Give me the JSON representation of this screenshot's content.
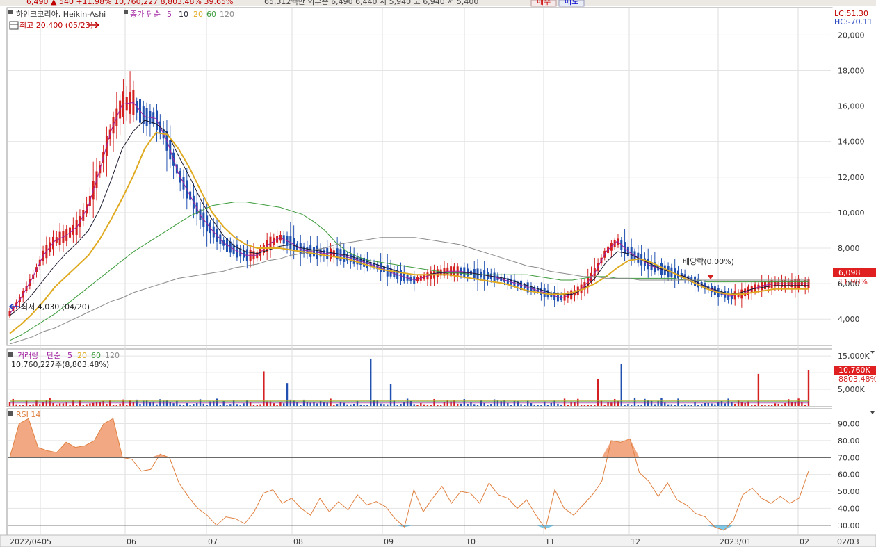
{
  "toolbar": {
    "quote_fragment": "6,490 ▲ 540 +11.98% 10,760,227 8,803.48% 39.65%",
    "volume_fragment": "65,312백만 외부순 6,490 6,440 시 5,940 고 6,940 저 5,400",
    "buy_label": "매수",
    "sell_label": "매도"
  },
  "price_panel": {
    "stock_name": "하인크코리아, Heikin-Ashi",
    "ma_title": "종가 단순",
    "ma_periods": [
      "5",
      "10",
      "20",
      "60",
      "120"
    ],
    "high_annotation": "최고 20,400 (05/23)",
    "low_annotation": "최저 4,030 (04/20)",
    "dividend_annotation": "배당락(0.00%)",
    "lc_label": "LC:51.30",
    "hc_label": "HC:-70.11",
    "price_tag": "6,098",
    "pct_tag": "11.98%"
  },
  "volume_panel": {
    "title": "거래량",
    "ma_title": "단순",
    "ma_periods": [
      "5",
      "20",
      "60",
      "120"
    ],
    "volume_text": "10,760,227주(8,803.48%)",
    "volume_tag": "10,760K",
    "pct_tag": "8803.48%"
  },
  "rsi_panel": {
    "title": "RSI 14"
  },
  "colors": {
    "up": "#d42020",
    "down": "#2050b0",
    "ma5": "#a020a0",
    "ma10": "#1a1a30",
    "ma20": "#e0aa20",
    "ma60": "#3a9a3a",
    "ma120": "#8a8a8a",
    "rsi_line": "#e08040",
    "rsi_fill_over": "#f2a882",
    "rsi_fill_under": "#7ec8e8"
  },
  "chart_data": [
    {
      "type": "candlestick",
      "title": "하인크코리아, Heikin-Ashi",
      "yticks": [
        4000,
        6000,
        8000,
        10000,
        12000,
        14000,
        16000,
        18000,
        20000
      ],
      "ylim": [
        2600,
        20600
      ],
      "x_labels": [
        "2022/04",
        "05",
        "06",
        "07",
        "08",
        "09",
        "10",
        "11",
        "12",
        "2023/01",
        "02",
        "02/03"
      ],
      "last_price": 6098,
      "series": [
        {
          "name": "5",
          "values": [
            4300,
            5200,
            6300,
            7600,
            8400,
            8700,
            9200,
            10400,
            12400,
            14600,
            16100,
            16200,
            15400,
            15300,
            14000,
            12200,
            11000,
            9800,
            9000,
            8300,
            7900,
            7600,
            7600,
            8200,
            8600,
            8300,
            7900,
            7800,
            7700,
            7700,
            7500,
            7300,
            7100,
            6900,
            6600,
            6400,
            6200,
            6400,
            6600,
            6700,
            6700,
            6600,
            6500,
            6400,
            6200,
            6000,
            5800,
            5600,
            5400,
            5200,
            5400,
            5800,
            6600,
            7800,
            8400,
            7800,
            7400,
            7000,
            6800,
            6600,
            6400,
            6100,
            5800,
            5500,
            5300,
            5400,
            5700,
            5900,
            6000,
            6000,
            6000,
            6000
          ]
        },
        {
          "name": "10",
          "values": [
            4200,
            4700,
            5400,
            6200,
            7000,
            7700,
            8300,
            9000,
            10200,
            11800,
            13600,
            14600,
            15200,
            15000,
            14500,
            13200,
            12000,
            10700,
            9600,
            8700,
            8100,
            7800,
            7700,
            7900,
            8100,
            8200,
            8000,
            7900,
            7800,
            7700,
            7600,
            7400,
            7200,
            7000,
            6800,
            6600,
            6500,
            6500,
            6600,
            6600,
            6600,
            6600,
            6500,
            6400,
            6300,
            6100,
            5900,
            5700,
            5500,
            5400,
            5400,
            5700,
            6300,
            7200,
            7800,
            7700,
            7400,
            7100,
            6800,
            6600,
            6400,
            6100,
            5800,
            5600,
            5400,
            5500,
            5700,
            5800,
            5900,
            5900,
            5900,
            5900
          ]
        },
        {
          "name": "20",
          "values": [
            3200,
            3700,
            4300,
            5000,
            5800,
            6400,
            7000,
            7600,
            8500,
            9600,
            10800,
            12100,
            13600,
            14500,
            14400,
            13600,
            12500,
            11200,
            10000,
            9200,
            8600,
            8200,
            8000,
            8000,
            8000,
            7900,
            7800,
            7700,
            7600,
            7500,
            7400,
            7200,
            7000,
            6800,
            6700,
            6600,
            6500,
            6500,
            6500,
            6500,
            6400,
            6300,
            6200,
            6100,
            6000,
            5800,
            5600,
            5500,
            5400,
            5400,
            5500,
            5700,
            6000,
            6400,
            6900,
            7300,
            7400,
            7200,
            6900,
            6600,
            6300,
            6000,
            5700,
            5500,
            5400,
            5400,
            5500,
            5600,
            5700,
            5700,
            5700,
            5700
          ]
        },
        {
          "name": "60",
          "values": [
            2800,
            3100,
            3500,
            3900,
            4300,
            4800,
            5300,
            5800,
            6300,
            6800,
            7300,
            7800,
            8200,
            8600,
            9000,
            9400,
            9800,
            10100,
            10400,
            10500,
            10600,
            10600,
            10500,
            10400,
            10300,
            10100,
            9900,
            9500,
            9000,
            8300,
            7800,
            7500,
            7300,
            7200,
            7100,
            7000,
            6900,
            6800,
            6700,
            6600,
            6600,
            6500,
            6500,
            6500,
            6500,
            6500,
            6500,
            6400,
            6300,
            6200,
            6200,
            6300,
            6400,
            6400,
            6300,
            6300,
            6300,
            6300,
            6300,
            6300,
            6200,
            6200,
            6100,
            6100,
            6100,
            6100,
            6100,
            6100,
            6100,
            6100,
            6100,
            6100
          ]
        },
        {
          "name": "120",
          "values": [
            2600,
            2800,
            3000,
            3300,
            3500,
            3800,
            4100,
            4400,
            4700,
            5000,
            5200,
            5500,
            5700,
            5900,
            6100,
            6300,
            6400,
            6500,
            6600,
            6700,
            6900,
            7000,
            7100,
            7300,
            7400,
            7600,
            7700,
            7900,
            8000,
            8200,
            8300,
            8400,
            8500,
            8600,
            8600,
            8600,
            8600,
            8500,
            8400,
            8300,
            8200,
            8000,
            7800,
            7600,
            7400,
            7200,
            7000,
            6900,
            6700,
            6600,
            6500,
            6400,
            6400,
            6300,
            6300,
            6300,
            6200,
            6200,
            6200,
            6200,
            6200,
            6200,
            6200,
            6200,
            6200,
            6200,
            6200,
            6200,
            6200,
            6200,
            6200,
            6200
          ]
        }
      ]
    },
    {
      "type": "bar",
      "title": "거래량",
      "yticks": [
        5000,
        10000,
        15000
      ],
      "ytick_labels": [
        "5,000K",
        "10,000K",
        "15,000K"
      ],
      "ylim": [
        0,
        16500
      ],
      "last_value": 10760
    },
    {
      "type": "area",
      "title": "RSI 14",
      "yticks": [
        30,
        40,
        50,
        60,
        70,
        80,
        90
      ],
      "ytick_labels": [
        "30.00",
        "40.00",
        "50.00",
        "60.00",
        "70.00",
        "80.00",
        "90.00"
      ],
      "ylim": [
        25,
        98
      ],
      "thresholds": [
        70,
        30
      ],
      "values": [
        70,
        90,
        93,
        76,
        74,
        73,
        79,
        76,
        77,
        80,
        90,
        93,
        70,
        69,
        62,
        63,
        72,
        70,
        55,
        47,
        40,
        36,
        30,
        35,
        34,
        31,
        38,
        49,
        51,
        43,
        46,
        40,
        36,
        46,
        38,
        44,
        39,
        48,
        42,
        44,
        41,
        34,
        29,
        51,
        38,
        46,
        53,
        43,
        50,
        49,
        43,
        55,
        48,
        46,
        40,
        45,
        36,
        28,
        51,
        40,
        36,
        42,
        48,
        56,
        80,
        79,
        81,
        61,
        56,
        47,
        55,
        45,
        42,
        37,
        35,
        29,
        27,
        33,
        48,
        52,
        46,
        43,
        47,
        43,
        46,
        62
      ]
    }
  ]
}
